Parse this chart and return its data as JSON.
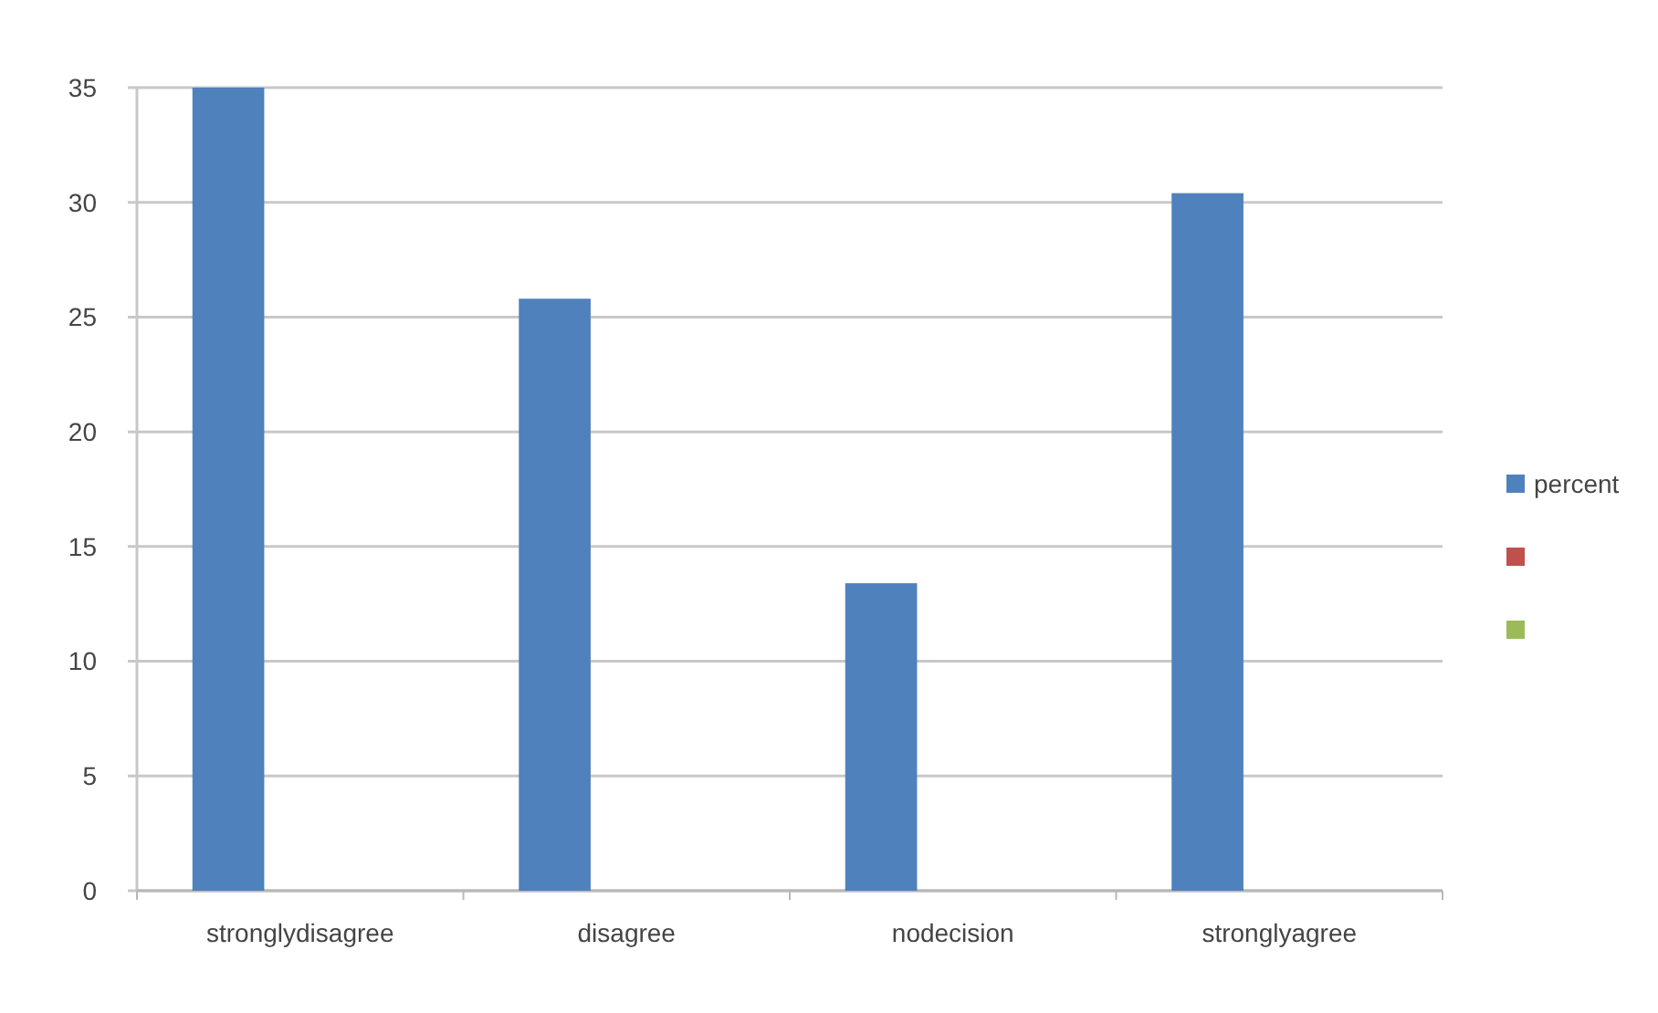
{
  "chart_data": {
    "type": "bar",
    "categories": [
      "stronglydisagree",
      "disagree",
      "nodecision",
      "stronglyagree"
    ],
    "series": [
      {
        "name": "percent",
        "color": "#4f81bd",
        "values": [
          35,
          25.8,
          13.4,
          30.4
        ]
      },
      {
        "color": "#c0504d",
        "values": [
          null,
          null,
          null,
          null
        ]
      },
      {
        "color": "#9bbb59",
        "values": [
          null,
          null,
          null,
          null
        ]
      }
    ],
    "ylim": [
      0,
      35
    ],
    "yticks": [
      0,
      5,
      10,
      15,
      20,
      25,
      30,
      35
    ],
    "grid": "y",
    "legend": "right"
  }
}
